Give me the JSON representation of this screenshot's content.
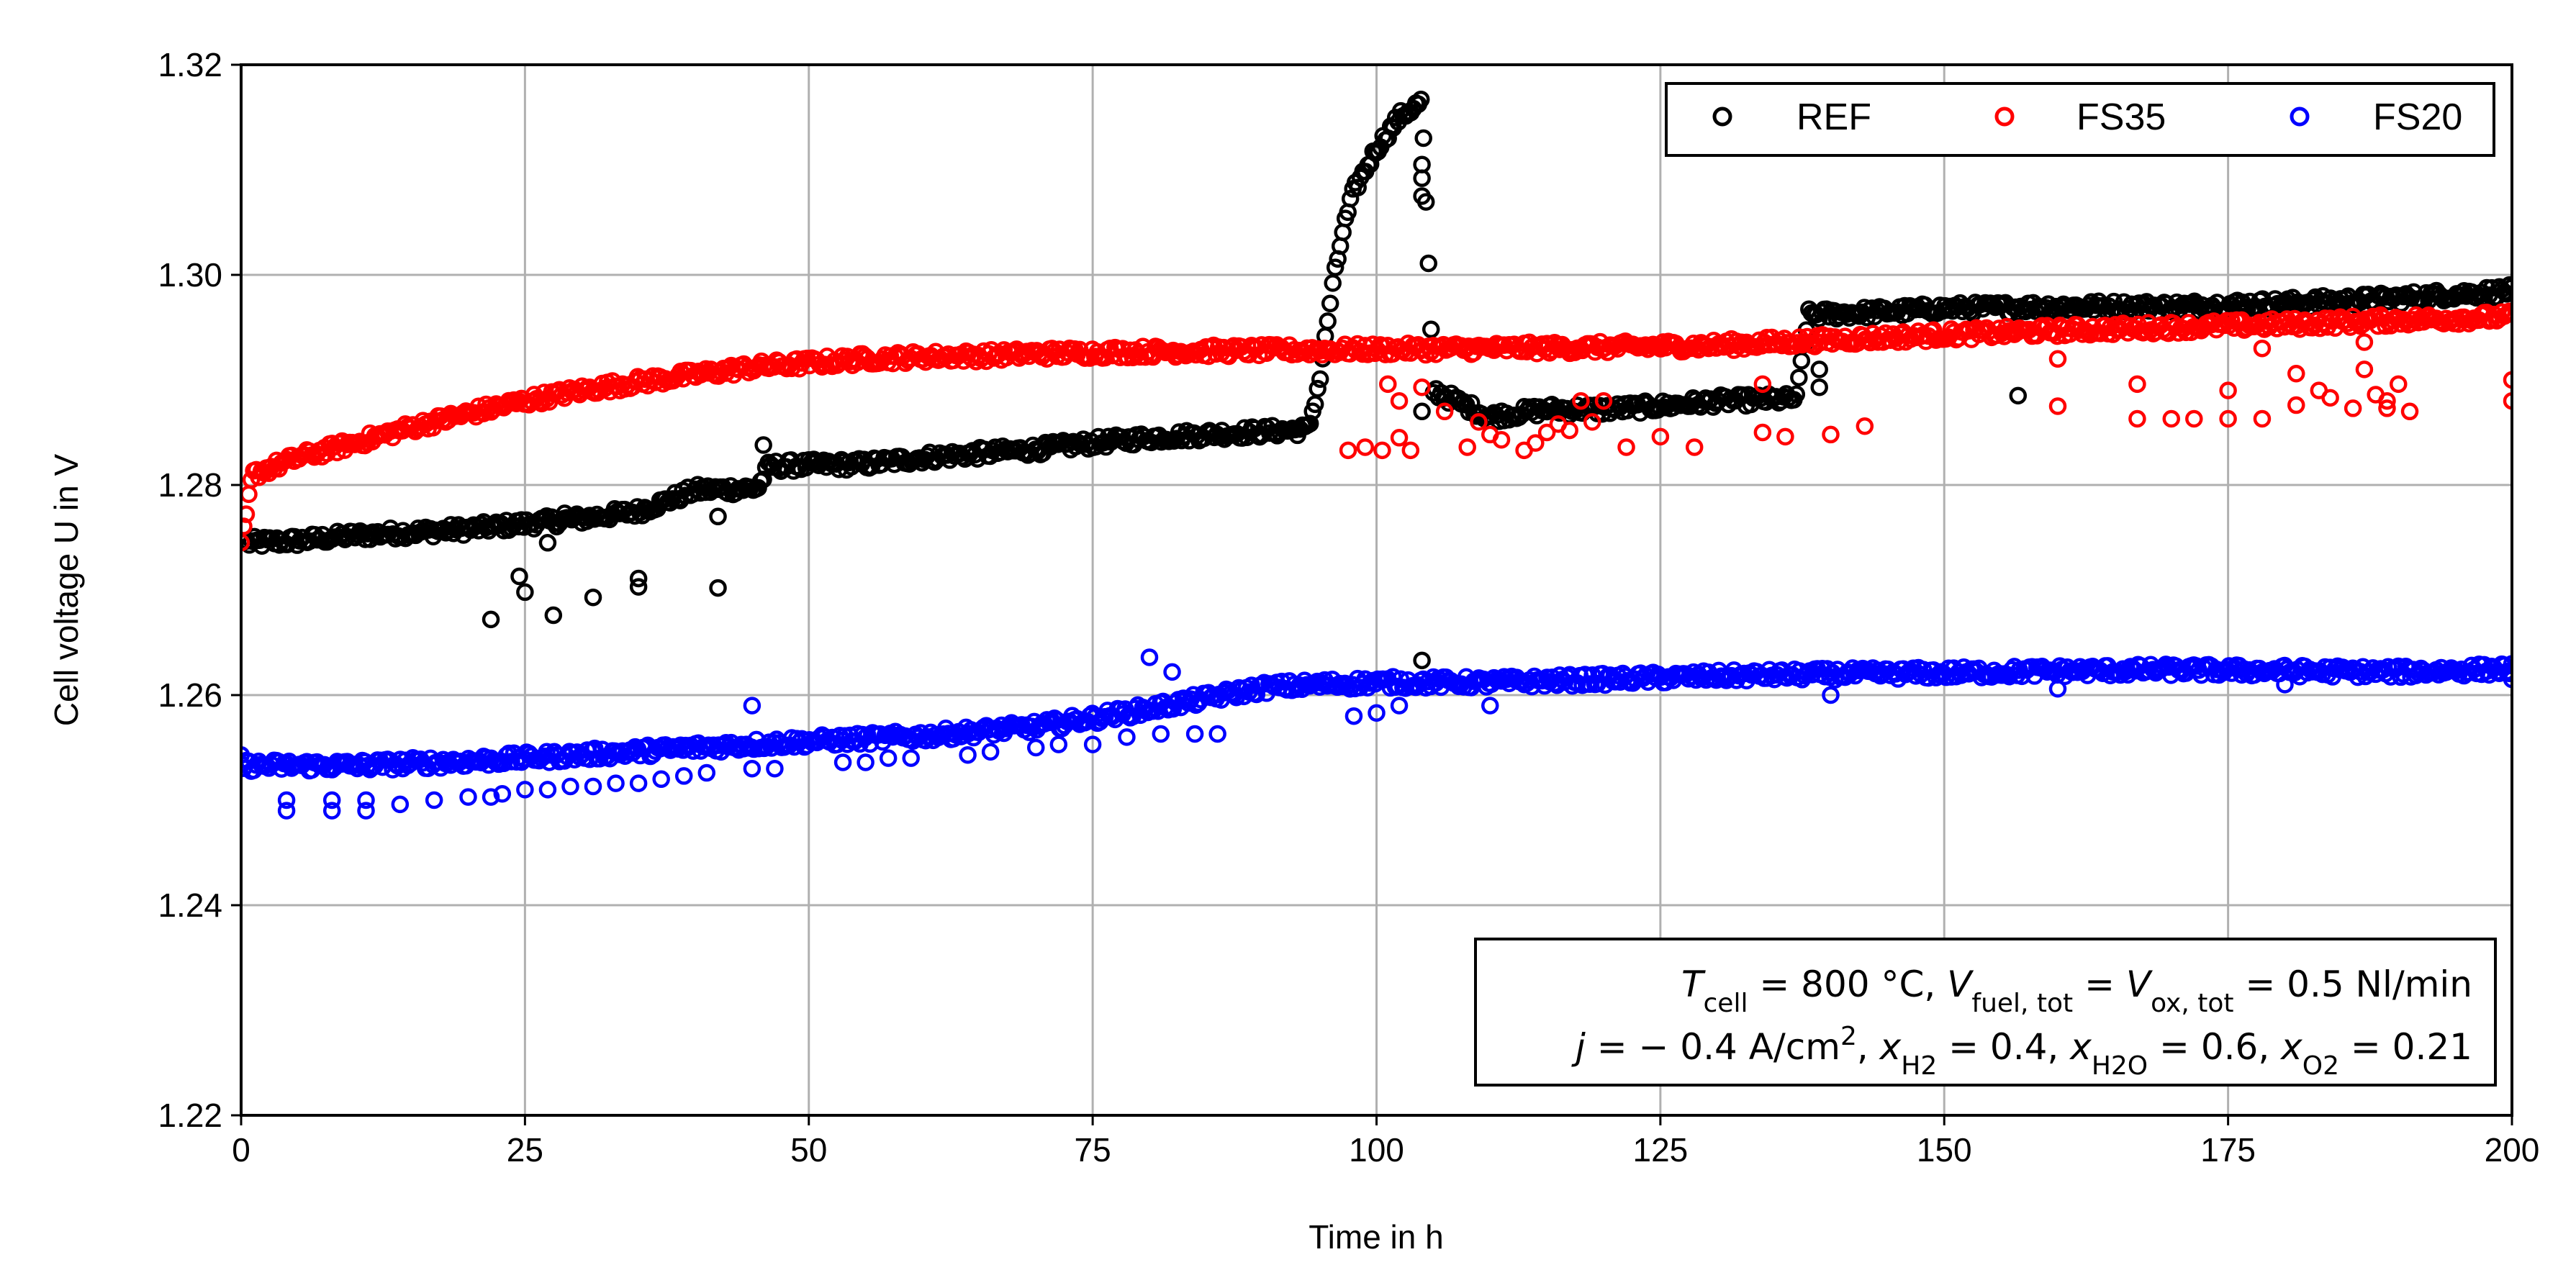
{
  "chart_data": {
    "type": "scatter",
    "title": "",
    "xlabel": "Time in h",
    "ylabel": "Cell voltage U in V",
    "xlim": [
      0,
      200
    ],
    "ylim": [
      1.22,
      1.32
    ],
    "xticks": [
      0,
      25,
      50,
      75,
      100,
      125,
      150,
      175,
      200
    ],
    "yticks": [
      1.22,
      1.24,
      1.26,
      1.28,
      1.3,
      1.32
    ],
    "xtick_labels": [
      "0",
      "25",
      "50",
      "75",
      "100",
      "125",
      "150",
      "175",
      "200"
    ],
    "ytick_labels": [
      "1.22",
      "1.24",
      "1.26",
      "1.28",
      "1.30",
      "1.32"
    ],
    "grid": true,
    "legend_position": "top-right",
    "series": [
      {
        "name": "REF",
        "color": "#000000",
        "trend": [
          [
            0.5,
            1.2745
          ],
          [
            5,
            1.2747
          ],
          [
            10,
            1.2752
          ],
          [
            15,
            1.2755
          ],
          [
            20,
            1.2758
          ],
          [
            25,
            1.2763
          ],
          [
            30,
            1.2768
          ],
          [
            35,
            1.2775
          ],
          [
            40,
            1.2795
          ],
          [
            45.5,
            1.2797
          ],
          [
            46.5,
            1.2818
          ],
          [
            55,
            1.282
          ],
          [
            60,
            1.2826
          ],
          [
            65,
            1.283
          ],
          [
            70,
            1.2834
          ],
          [
            75,
            1.284
          ],
          [
            80,
            1.2845
          ],
          [
            85,
            1.2848
          ],
          [
            94,
            1.2853
          ],
          [
            95,
            1.29
          ],
          [
            96,
            1.298
          ],
          [
            97,
            1.304
          ],
          [
            98,
            1.308
          ],
          [
            100,
            1.312
          ],
          [
            102,
            1.315
          ],
          [
            104,
            1.3165
          ],
          [
            105,
            1.289
          ],
          [
            110,
            1.2865
          ],
          [
            115,
            1.2872
          ],
          [
            120,
            1.2872
          ],
          [
            125,
            1.2875
          ],
          [
            130,
            1.288
          ],
          [
            137,
            1.2882
          ],
          [
            138,
            1.2962
          ],
          [
            145,
            1.2965
          ],
          [
            150,
            1.2968
          ],
          [
            160,
            1.297
          ],
          [
            170,
            1.297
          ],
          [
            180,
            1.2973
          ],
          [
            190,
            1.2978
          ],
          [
            200,
            1.2985
          ]
        ],
        "outliers": [
          [
            22,
            1.2672
          ],
          [
            24.5,
            1.2713
          ],
          [
            25,
            1.2698
          ],
          [
            27,
            1.2745
          ],
          [
            27.5,
            1.2676
          ],
          [
            28.5,
            1.2773
          ],
          [
            31,
            1.2693
          ],
          [
            35,
            1.2703
          ],
          [
            35,
            1.2711
          ],
          [
            42,
            1.2702
          ],
          [
            42,
            1.277
          ],
          [
            46,
            1.2838
          ],
          [
            104,
            1.3105
          ],
          [
            104,
            1.3092
          ],
          [
            104,
            1.3075
          ],
          [
            104,
            1.2633
          ],
          [
            104,
            1.287
          ],
          [
            139,
            1.2893
          ],
          [
            139,
            1.291
          ],
          [
            156.5,
            1.2885
          ]
        ]
      },
      {
        "name": "FS35",
        "color": "#ff0000",
        "trend": [
          [
            0,
            1.274
          ],
          [
            1,
            1.281
          ],
          [
            5,
            1.2826
          ],
          [
            10,
            1.284
          ],
          [
            15,
            1.2855
          ],
          [
            20,
            1.2868
          ],
          [
            25,
            1.288
          ],
          [
            30,
            1.289
          ],
          [
            35,
            1.2898
          ],
          [
            40,
            1.2905
          ],
          [
            45,
            1.2912
          ],
          [
            50,
            1.2916
          ],
          [
            55,
            1.292
          ],
          [
            60,
            1.2922
          ],
          [
            65,
            1.2923
          ],
          [
            70,
            1.2925
          ],
          [
            75,
            1.2926
          ],
          [
            80,
            1.2927
          ],
          [
            90,
            1.2928
          ],
          [
            100,
            1.2929
          ],
          [
            110,
            1.293
          ],
          [
            120,
            1.2931
          ],
          [
            130,
            1.2933
          ],
          [
            140,
            1.2938
          ],
          [
            150,
            1.2943
          ],
          [
            160,
            1.2947
          ],
          [
            170,
            1.295
          ],
          [
            180,
            1.2953
          ],
          [
            190,
            1.2957
          ],
          [
            200,
            1.296
          ]
        ],
        "outliers": [
          [
            97.5,
            1.2833
          ],
          [
            99,
            1.2836
          ],
          [
            100.5,
            1.2833
          ],
          [
            101,
            1.2896
          ],
          [
            102,
            1.2845
          ],
          [
            102,
            1.288
          ],
          [
            103,
            1.2833
          ],
          [
            104,
            1.2893
          ],
          [
            106,
            1.287
          ],
          [
            108,
            1.2836
          ],
          [
            109,
            1.286
          ],
          [
            110,
            1.2848
          ],
          [
            111,
            1.2843
          ],
          [
            113,
            1.2833
          ],
          [
            114,
            1.284
          ],
          [
            115,
            1.285
          ],
          [
            116,
            1.2858
          ],
          [
            117,
            1.2852
          ],
          [
            118,
            1.288
          ],
          [
            119,
            1.286
          ],
          [
            120,
            1.288
          ],
          [
            122,
            1.2836
          ],
          [
            125,
            1.2846
          ],
          [
            128,
            1.2836
          ],
          [
            134,
            1.2896
          ],
          [
            134,
            1.285
          ],
          [
            136,
            1.2846
          ],
          [
            140,
            1.2848
          ],
          [
            143,
            1.2856
          ],
          [
            160,
            1.2875
          ],
          [
            160,
            1.292
          ],
          [
            167,
            1.2863
          ],
          [
            167,
            1.2896
          ],
          [
            170,
            1.2863
          ],
          [
            172,
            1.2863
          ],
          [
            175,
            1.2863
          ],
          [
            175,
            1.289
          ],
          [
            178,
            1.2863
          ],
          [
            178,
            1.293
          ],
          [
            181,
            1.2876
          ],
          [
            181,
            1.2906
          ],
          [
            183,
            1.289
          ],
          [
            184,
            1.2883
          ],
          [
            186,
            1.2873
          ],
          [
            187,
            1.2936
          ],
          [
            187,
            1.291
          ],
          [
            188,
            1.2886
          ],
          [
            189,
            1.288
          ],
          [
            189,
            1.2873
          ],
          [
            190,
            1.2896
          ],
          [
            191,
            1.287
          ],
          [
            200,
            1.288
          ],
          [
            200,
            1.29
          ]
        ]
      },
      {
        "name": "FS20",
        "color": "#0000ff",
        "trend": [
          [
            0,
            1.2533
          ],
          [
            10,
            1.2533
          ],
          [
            20,
            1.2537
          ],
          [
            30,
            1.2543
          ],
          [
            40,
            1.255
          ],
          [
            50,
            1.2556
          ],
          [
            60,
            1.2561
          ],
          [
            70,
            1.257
          ],
          [
            75,
            1.2578
          ],
          [
            80,
            1.2587
          ],
          [
            85,
            1.2597
          ],
          [
            90,
            1.2607
          ],
          [
            95,
            1.261
          ],
          [
            100,
            1.2612
          ],
          [
            110,
            1.2612
          ],
          [
            120,
            1.2615
          ],
          [
            130,
            1.2618
          ],
          [
            140,
            1.262
          ],
          [
            150,
            1.2621
          ],
          [
            160,
            1.2623
          ],
          [
            170,
            1.2624
          ],
          [
            180,
            1.2623
          ],
          [
            190,
            1.2622
          ],
          [
            200,
            1.2625
          ]
        ],
        "outliers": [
          [
            0,
            1.2543
          ],
          [
            4,
            1.249
          ],
          [
            4,
            1.25
          ],
          [
            8,
            1.249
          ],
          [
            8,
            1.25
          ],
          [
            11,
            1.249
          ],
          [
            11,
            1.25
          ],
          [
            14,
            1.2496
          ],
          [
            17,
            1.25
          ],
          [
            20,
            1.2503
          ],
          [
            22,
            1.2503
          ],
          [
            23,
            1.2506
          ],
          [
            25,
            1.251
          ],
          [
            27,
            1.251
          ],
          [
            29,
            1.2513
          ],
          [
            31,
            1.2513
          ],
          [
            33,
            1.2516
          ],
          [
            35,
            1.2516
          ],
          [
            37,
            1.252
          ],
          [
            39,
            1.2523
          ],
          [
            41,
            1.2526
          ],
          [
            45,
            1.259
          ],
          [
            45,
            1.253
          ],
          [
            47,
            1.253
          ],
          [
            53,
            1.2536
          ],
          [
            55,
            1.2536
          ],
          [
            57,
            1.254
          ],
          [
            59,
            1.254
          ],
          [
            64,
            1.2543
          ],
          [
            66,
            1.2546
          ],
          [
            70,
            1.255
          ],
          [
            72,
            1.2553
          ],
          [
            75,
            1.2553
          ],
          [
            78,
            1.256
          ],
          [
            80,
            1.2636
          ],
          [
            81,
            1.2563
          ],
          [
            82,
            1.2622
          ],
          [
            84,
            1.2563
          ],
          [
            86,
            1.2563
          ],
          [
            98,
            1.258
          ],
          [
            100,
            1.2583
          ],
          [
            102,
            1.259
          ],
          [
            110,
            1.259
          ],
          [
            140,
            1.26
          ],
          [
            160,
            1.2606
          ],
          [
            180,
            1.261
          ],
          [
            200,
            1.2615
          ]
        ]
      }
    ],
    "annotation": {
      "line1": {
        "T": "T",
        "cell": "cell",
        "eq1": " = 800 °C, ",
        "V": "V",
        "fueltot": "fuel, tot",
        "eq2": " = ",
        "Vox": "V",
        "oxtot": "ox, tot",
        "eq3": " = 0.5 Nl/min"
      },
      "line2": {
        "j": "j",
        "eq1": " = − 0.4 A/cm",
        "sup": "2",
        "sep1": ", ",
        "x1": "x",
        "h2": "H2",
        "eq2": " = 0.4, ",
        "x2": "x",
        "h2o": "H2O",
        "eq3": " = 0.6, ",
        "x3": "x",
        "o2": "O2",
        "eq4": " = 0.21"
      }
    }
  }
}
